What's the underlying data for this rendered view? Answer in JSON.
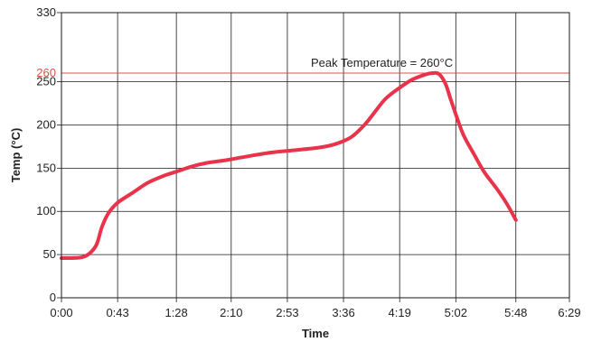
{
  "chart_data": {
    "type": "line",
    "xlabel": "Time",
    "ylabel": "Temp (°C)",
    "x_ticks": [
      {
        "value": 0,
        "label": "0:00"
      },
      {
        "value": 43,
        "label": "0:43"
      },
      {
        "value": 88,
        "label": "1:28"
      },
      {
        "value": 130,
        "label": "2:10"
      },
      {
        "value": 173,
        "label": "2:53"
      },
      {
        "value": 216,
        "label": "3:36"
      },
      {
        "value": 259,
        "label": "4:19"
      },
      {
        "value": 302,
        "label": "5:02"
      },
      {
        "value": 348,
        "label": "5:48"
      },
      {
        "value": 389,
        "label": "6:29"
      }
    ],
    "y_ticks": [
      0,
      50,
      100,
      150,
      200,
      250,
      330
    ],
    "xlim": [
      0,
      389
    ],
    "ylim": [
      0,
      330
    ],
    "grid": true,
    "reference_line": {
      "value": 260,
      "label": "260",
      "color": "#d9534f"
    },
    "annotation": "Peak Temperature = 260°C",
    "series": [
      {
        "color": "#e8334a",
        "points": [
          [
            0,
            46
          ],
          [
            8,
            46
          ],
          [
            16,
            47
          ],
          [
            22,
            52
          ],
          [
            27,
            62
          ],
          [
            31,
            82
          ],
          [
            36,
            98
          ],
          [
            43,
            110
          ],
          [
            55,
            122
          ],
          [
            66,
            133
          ],
          [
            78,
            141
          ],
          [
            88,
            146
          ],
          [
            100,
            152
          ],
          [
            111,
            156
          ],
          [
            125,
            159
          ],
          [
            140,
            163
          ],
          [
            160,
            168
          ],
          [
            180,
            171
          ],
          [
            198,
            174
          ],
          [
            210,
            178
          ],
          [
            222,
            186
          ],
          [
            232,
            200
          ],
          [
            240,
            215
          ],
          [
            248,
            230
          ],
          [
            258,
            242
          ],
          [
            268,
            252
          ],
          [
            278,
            258
          ],
          [
            284,
            260
          ],
          [
            289,
            259
          ],
          [
            294,
            248
          ],
          [
            298,
            230
          ],
          [
            303,
            208
          ],
          [
            308,
            188
          ],
          [
            316,
            166
          ],
          [
            324,
            145
          ],
          [
            333,
            127
          ],
          [
            341,
            109
          ],
          [
            348,
            90
          ]
        ]
      }
    ]
  }
}
